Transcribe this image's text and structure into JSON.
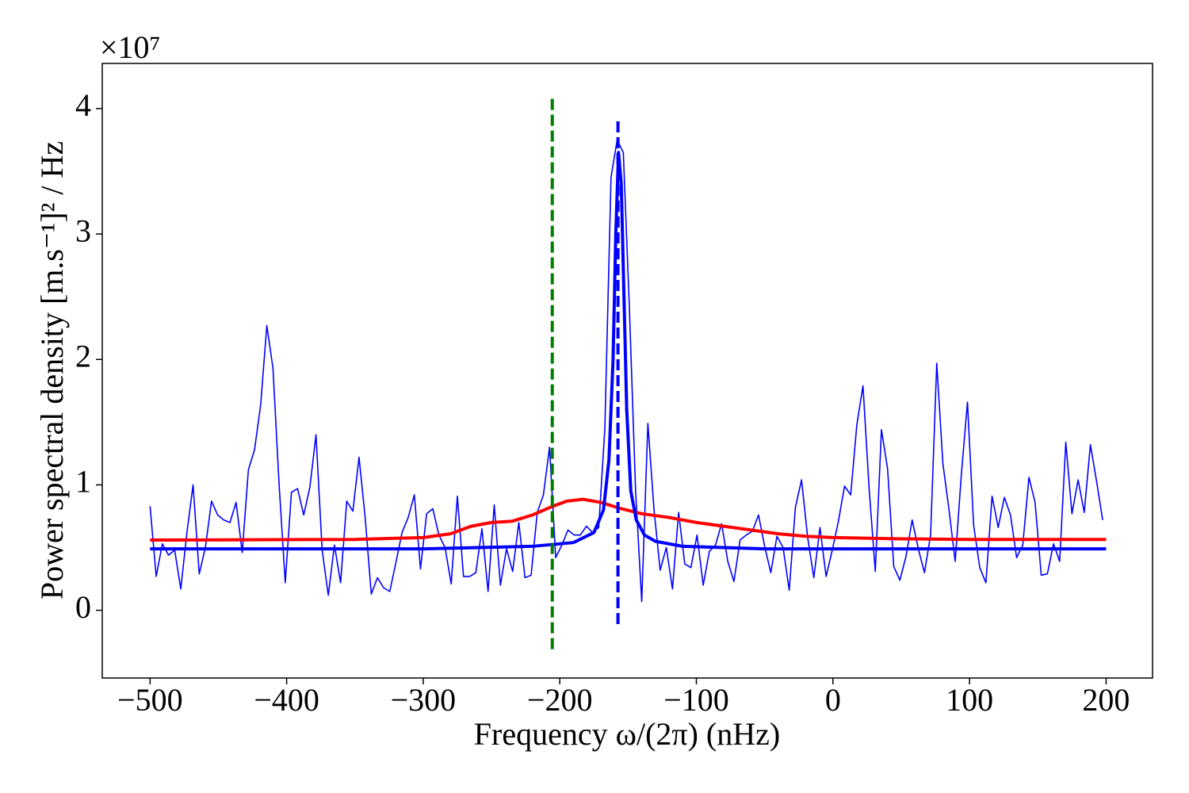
{
  "chart_data": {
    "type": "line",
    "offset_text": "×10⁷",
    "xlabel": "Frequency ω/(2π) (nHz)",
    "ylabel": "Power spectral density [m.s⁻¹]² / Hz",
    "xlim": [
      -535,
      234
    ],
    "ylim": [
      -0.54,
      4.36
    ],
    "xticks": [
      {
        "value": -500,
        "label": "−500"
      },
      {
        "value": -400,
        "label": "−400"
      },
      {
        "value": -300,
        "label": "−300"
      },
      {
        "value": -200,
        "label": "−200"
      },
      {
        "value": -100,
        "label": "−100"
      },
      0,
      100,
      200
    ],
    "yticks": [
      0,
      1,
      2,
      3,
      4
    ],
    "series": [
      {
        "color": "#0000ff",
        "x": [
          -500,
          -495.5,
          -491,
          -486.5,
          -482,
          -477.5,
          -473,
          -468.5,
          -464,
          -459.5,
          -455,
          -450.5,
          -446,
          -441.5,
          -437,
          -432.5,
          -428,
          -423.5,
          -419,
          -414.5,
          -410,
          -405.5,
          -401,
          -396.5,
          -392,
          -387.5,
          -383,
          -378.5,
          -374,
          -369.5,
          -365,
          -360.5,
          -356,
          -351.5,
          -347,
          -342.5,
          -338,
          -333.5,
          -329,
          -324.5,
          -320,
          -315.5,
          -311,
          -306.5,
          -302,
          -297.5,
          -293,
          -288.5,
          -284,
          -279.5,
          -275,
          -270.5,
          -266,
          -261.5,
          -257,
          -252.5,
          -248,
          -243.5,
          -239,
          -234.5,
          -230,
          -225.5,
          -221,
          -216.5,
          -212,
          -207.5,
          -203,
          -198.5,
          -194,
          -189.5,
          -185,
          -180.5,
          -176,
          -171.5,
          -167,
          -162.5,
          -158,
          -153.5,
          -149,
          -144.5,
          -140,
          -135.5,
          -131,
          -126.5,
          -122,
          -117.5,
          -113,
          -108.5,
          -104,
          -99.5,
          -95,
          -90.5,
          -86,
          -81.5,
          -77,
          -72.5,
          -68,
          -63.5,
          -59,
          -54.5,
          -50,
          -45.5,
          -41,
          -36.5,
          -32,
          -27.5,
          -23,
          -18.5,
          -14,
          -9.5,
          -5,
          -0.5,
          4,
          8.5,
          13,
          17.5,
          22,
          26.5,
          31,
          35.5,
          40,
          44.5,
          49,
          53.5,
          58,
          62.5,
          67,
          71.5,
          76,
          80.5,
          85,
          89.5,
          94,
          98.5,
          103,
          107.5,
          112,
          116.5,
          121,
          125.5,
          130,
          134.5,
          139,
          143.5,
          148,
          152.5,
          157,
          161.5,
          166,
          170.5,
          175,
          179.5,
          184,
          188.5,
          193,
          197.5
        ],
        "values": [
          0.83,
          0.27,
          0.53,
          0.44,
          0.48,
          0.17,
          0.62,
          1.0,
          0.29,
          0.5,
          0.87,
          0.76,
          0.72,
          0.7,
          0.86,
          0.46,
          1.12,
          1.28,
          1.64,
          2.27,
          1.93,
          1.0,
          0.22,
          0.94,
          0.97,
          0.76,
          0.98,
          1.4,
          0.48,
          0.12,
          0.52,
          0.22,
          0.87,
          0.79,
          1.22,
          0.74,
          0.13,
          0.26,
          0.18,
          0.15,
          0.38,
          0.62,
          0.74,
          0.92,
          0.33,
          0.77,
          0.81,
          0.6,
          0.5,
          0.21,
          0.91,
          0.27,
          0.27,
          0.3,
          0.65,
          0.15,
          0.84,
          0.2,
          0.49,
          0.31,
          0.7,
          0.26,
          0.28,
          0.78,
          0.92,
          1.3,
          0.42,
          0.52,
          0.64,
          0.6,
          0.6,
          0.67,
          0.62,
          0.66,
          1.45,
          3.45,
          3.75,
          3.65,
          2.4,
          0.95,
          0.07,
          1.49,
          0.8,
          0.32,
          0.5,
          0.17,
          0.78,
          0.37,
          0.34,
          0.6,
          0.2,
          0.47,
          0.52,
          0.69,
          0.39,
          0.23,
          0.56,
          0.6,
          0.63,
          0.76,
          0.51,
          0.3,
          0.59,
          0.5,
          0.16,
          0.82,
          1.04,
          0.58,
          0.26,
          0.66,
          0.27,
          0.48,
          0.71,
          0.99,
          0.92,
          1.48,
          1.79,
          0.97,
          0.31,
          1.44,
          1.13,
          0.35,
          0.24,
          0.43,
          0.72,
          0.49,
          0.3,
          0.6,
          1.97,
          1.17,
          0.8,
          0.39,
          1.08,
          1.66,
          0.68,
          0.34,
          0.22,
          0.91,
          0.66,
          0.9,
          0.76,
          0.42,
          0.52,
          1.06,
          0.86,
          0.28,
          0.29,
          0.53,
          0.39,
          1.34,
          0.77,
          1.04,
          0.78,
          1.32,
          1.03,
          0.72
        ]
      },
      {
        "color": "#ff0000",
        "x": [
          -500,
          -350,
          -300,
          -280,
          -265,
          -250,
          -235,
          -220,
          -205,
          -195,
          -183,
          -170,
          -155,
          -140,
          -120,
          -100,
          -80,
          -60,
          -40,
          -20,
          0,
          50,
          100,
          200
        ],
        "values": [
          0.56,
          0.565,
          0.58,
          0.61,
          0.67,
          0.7,
          0.71,
          0.76,
          0.83,
          0.87,
          0.885,
          0.86,
          0.81,
          0.77,
          0.74,
          0.7,
          0.67,
          0.64,
          0.61,
          0.59,
          0.58,
          0.57,
          0.565,
          0.565
        ]
      },
      {
        "color": "#0000ff",
        "x": [
          -500,
          -300,
          -220,
          -190,
          -175,
          -168,
          -164,
          -161,
          -159,
          -157,
          -155,
          -153,
          -151,
          -148,
          -144,
          -138,
          -130,
          -110,
          -50,
          200
        ],
        "values": [
          0.49,
          0.49,
          0.51,
          0.54,
          0.62,
          0.8,
          1.2,
          2.0,
          3.0,
          3.65,
          3.4,
          2.5,
          1.6,
          0.95,
          0.72,
          0.6,
          0.55,
          0.51,
          0.49,
          0.49
        ]
      }
    ],
    "vlines": [
      {
        "x": -205.5,
        "ymin": -0.31,
        "ymax": 4.1,
        "color": "#007f00"
      },
      {
        "x": -157.4,
        "ymin": -0.11,
        "ymax": 3.92,
        "color": "#0000ff"
      }
    ]
  }
}
